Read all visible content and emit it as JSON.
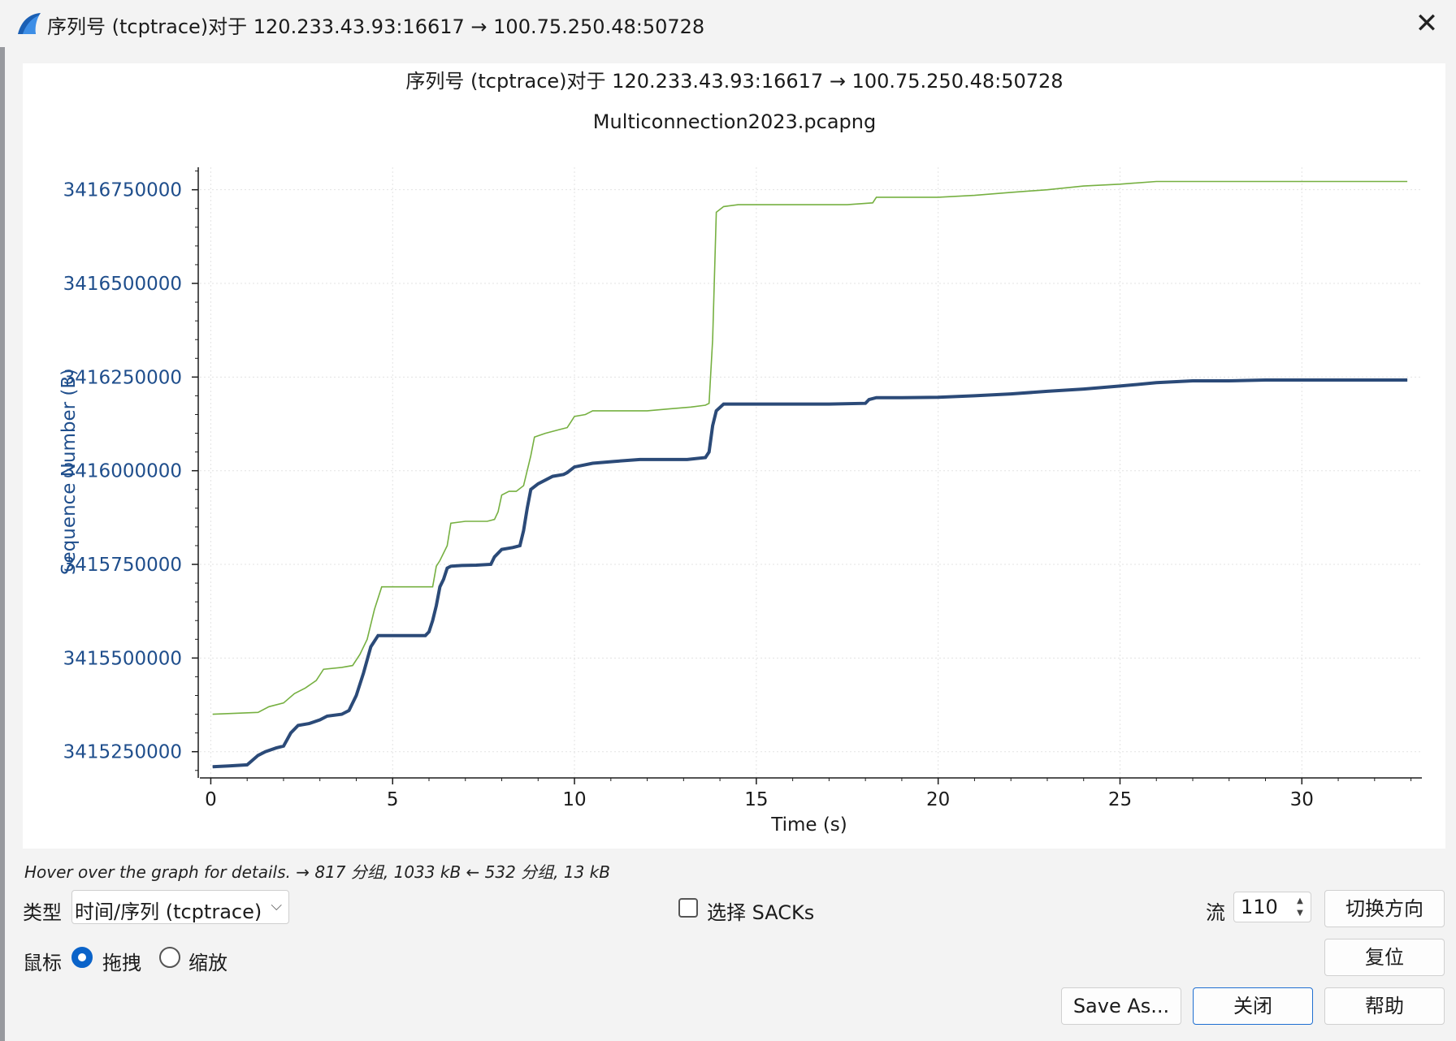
{
  "window": {
    "title": "序列号 (tcptrace)对于 120.233.43.93:16617 → 100.75.250.48:50728",
    "close_glyph": "✕",
    "icon": "wireshark-fin-icon"
  },
  "chart_data": {
    "type": "line",
    "title": "序列号 (tcptrace)对于 120.233.43.93:16617 → 100.75.250.48:50728",
    "subtitle": "Multiconnection2023.pcapng",
    "xlabel": "Time (s)",
    "ylabel": "Sequence Number (B)",
    "xlim": [
      -0.3,
      33.3
    ],
    "ylim": [
      3415180000,
      3416810000
    ],
    "x_ticks": [
      0,
      5,
      10,
      15,
      20,
      25,
      30
    ],
    "y_ticks": [
      3415250000,
      3415500000,
      3415750000,
      3416000000,
      3416250000,
      3416500000,
      3416750000
    ],
    "y_tick_labels": [
      "3415250000",
      "3415500000",
      "3415750000",
      "3416000000",
      "3416250000",
      "3416500000",
      "3416750000"
    ],
    "grid": true,
    "colors": {
      "receive_window": "#76b041",
      "segments": "#2b4a78",
      "acks": "#9a7b3d",
      "axis_text": "#1f4e8c"
    },
    "series": [
      {
        "role": "receive_window",
        "x": [
          0.05,
          1.3,
          1.6,
          2.0,
          2.3,
          2.6,
          2.9,
          3.1,
          3.6,
          3.9,
          4.1,
          4.3,
          4.5,
          4.7,
          5.5,
          6.1,
          6.2,
          6.3,
          6.5,
          6.6,
          7.0,
          7.6,
          7.8,
          7.9,
          8.0,
          8.2,
          8.4,
          8.6,
          8.8,
          8.9,
          9.2,
          9.6,
          9.8,
          9.9,
          10.0,
          10.3,
          10.5,
          11.0,
          11.5,
          12.0,
          12.6,
          13.2,
          13.6,
          13.7,
          13.8,
          13.9,
          14.1,
          14.5,
          15.5,
          16.5,
          17.5,
          18.2,
          18.3,
          19.0,
          20.0,
          21.0,
          22.0,
          23.0,
          24.0,
          25.0,
          26.0,
          27.0,
          28.0,
          29.0,
          30.0,
          31.0,
          32.0,
          32.9
        ],
        "y": [
          3415350000,
          3415355000,
          3415370000,
          3415380000,
          3415405000,
          3415420000,
          3415440000,
          3415470000,
          3415475000,
          3415480000,
          3415510000,
          3415550000,
          3415630000,
          3415690000,
          3415690000,
          3415690000,
          3415745000,
          3415760000,
          3415800000,
          3415860000,
          3415865000,
          3415865000,
          3415870000,
          3415890000,
          3415935000,
          3415945000,
          3415945000,
          3415960000,
          3416040000,
          3416090000,
          3416100000,
          3416110000,
          3416115000,
          3416130000,
          3416145000,
          3416150000,
          3416160000,
          3416160000,
          3416160000,
          3416160000,
          3416165000,
          3416170000,
          3416175000,
          3416180000,
          3416350000,
          3416690000,
          3416705000,
          3416710000,
          3416710000,
          3416710000,
          3416710000,
          3416715000,
          3416730000,
          3416730000,
          3416730000,
          3416735000,
          3416743000,
          3416750000,
          3416760000,
          3416765000,
          3416772000,
          3416772000,
          3416772000,
          3416772000,
          3416772000,
          3416772000,
          3416772000,
          3416772000
        ]
      },
      {
        "role": "segments",
        "x": [
          0.05,
          0.5,
          1.0,
          1.3,
          1.5,
          1.8,
          2.0,
          2.2,
          2.4,
          2.7,
          3.0,
          3.2,
          3.6,
          3.8,
          4.0,
          4.2,
          4.4,
          4.6,
          5.2,
          5.9,
          6.0,
          6.1,
          6.2,
          6.3,
          6.4,
          6.5,
          6.6,
          6.9,
          7.3,
          7.7,
          7.8,
          8.0,
          8.3,
          8.5,
          8.6,
          8.7,
          8.8,
          9.0,
          9.4,
          9.7,
          9.8,
          10.0,
          10.5,
          11.1,
          11.8,
          12.5,
          13.1,
          13.6,
          13.7,
          13.8,
          13.9,
          14.1,
          15.0,
          16.0,
          17.0,
          18.0,
          18.1,
          18.3,
          19.0,
          20.0,
          21.0,
          22.0,
          23.0,
          24.0,
          25.0,
          26.0,
          27.0,
          28.0,
          29.0,
          30.0,
          31.0,
          32.0,
          32.9
        ],
        "y": [
          3415210000,
          3415212000,
          3415215000,
          3415240000,
          3415250000,
          3415260000,
          3415265000,
          3415300000,
          3415320000,
          3415325000,
          3415335000,
          3415345000,
          3415350000,
          3415360000,
          3415400000,
          3415460000,
          3415530000,
          3415560000,
          3415560000,
          3415560000,
          3415570000,
          3415600000,
          3415640000,
          3415690000,
          3415710000,
          3415740000,
          3415745000,
          3415747000,
          3415748000,
          3415750000,
          3415770000,
          3415790000,
          3415795000,
          3415800000,
          3415840000,
          3415900000,
          3415950000,
          3415965000,
          3415985000,
          3415990000,
          3415995000,
          3416010000,
          3416020000,
          3416025000,
          3416030000,
          3416030000,
          3416030000,
          3416035000,
          3416050000,
          3416120000,
          3416160000,
          3416178000,
          3416178000,
          3416178000,
          3416178000,
          3416180000,
          3416190000,
          3416195000,
          3416195000,
          3416196000,
          3416200000,
          3416205000,
          3416212000,
          3416218000,
          3416226000,
          3416235000,
          3416240000,
          3416240000,
          3416242000,
          3416242000,
          3416242000,
          3416242000,
          3416242000
        ]
      }
    ]
  },
  "status": {
    "hint": "Hover over the graph for details. → 817 分组, 1033 kB ← 532 分组, 13 kB"
  },
  "controls": {
    "type_label": "类型",
    "type_value": "时间/序列 (tcptrace)",
    "type_arrow": "⌵",
    "sacks_label": "选择 SACKs",
    "stream_label": "流",
    "stream_value": "110",
    "spin_up": "▲",
    "spin_down": "▼",
    "switch_direction": "切换方向",
    "mouse_label": "鼠标",
    "drag_label": "拖拽",
    "zoom_label": "缩放",
    "reset": "复位",
    "save_as": "Save As...",
    "close": "关闭",
    "help": "帮助"
  }
}
